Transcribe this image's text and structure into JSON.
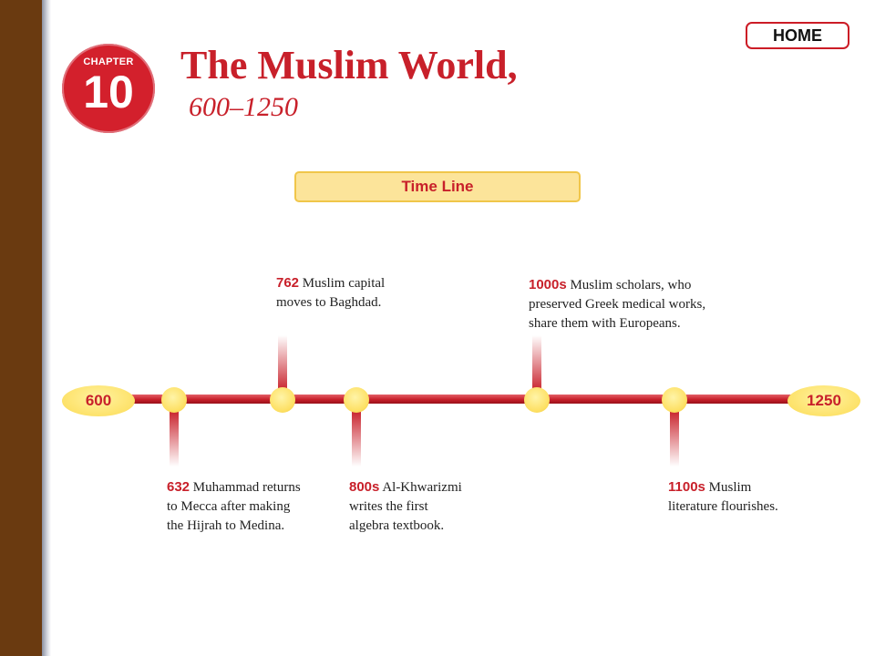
{
  "header": {
    "chapter_label": "CHAPTER",
    "chapter_number": "10",
    "title": "The Muslim World,",
    "subtitle": "600–1250",
    "home_label": "HOME"
  },
  "timeline": {
    "heading": "Time Line",
    "start_label": "600",
    "end_label": "1250",
    "events": [
      {
        "year": "632",
        "text": "Muhammad returns",
        "line2": "to Mecca after making",
        "line3": "the Hijrah to Medina."
      },
      {
        "year": "762",
        "text": "Muslim capital",
        "line2": "moves to Baghdad.",
        "line3": ""
      },
      {
        "year": "800s",
        "text": "Al-Khwarizmi",
        "line2": "writes the first",
        "line3": "algebra textbook."
      },
      {
        "year": "1000s",
        "text": "Muslim scholars, who",
        "line2": "preserved Greek medical works,",
        "line3": "share them with Europeans."
      },
      {
        "year": "1100s",
        "text": "Muslim",
        "line2": "literature flourishes.",
        "line3": ""
      }
    ]
  },
  "colors": {
    "accent_red": "#c8202a",
    "sidebar_brown": "#6a3a10",
    "node_yellow": "#fde064"
  }
}
